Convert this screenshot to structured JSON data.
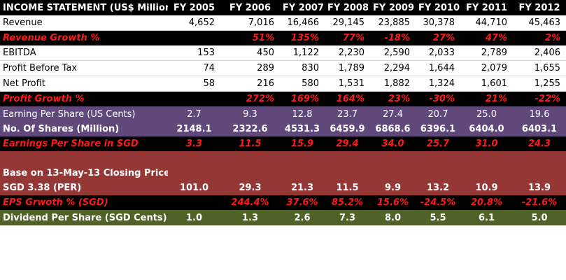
{
  "header": {
    "title": "INCOME STATEMENT (US$ Million)",
    "years": [
      "FY 2005",
      "FY 2006",
      "FY 2007",
      "FY 2008",
      "FY 2009",
      "FY 2010",
      "FY 2011",
      "FY 2012"
    ]
  },
  "rows": {
    "revenue": {
      "label": "Revenue",
      "values": [
        "4,652",
        "7,016",
        "16,466",
        "29,145",
        "23,885",
        "30,378",
        "44,710",
        "45,463"
      ]
    },
    "revenue_growth": {
      "label": "Revenue Growth %",
      "values": [
        "",
        "51%",
        "135%",
        "77%",
        "-18%",
        "27%",
        "47%",
        "2%"
      ]
    },
    "ebitda": {
      "label": "EBITDA",
      "values": [
        "153",
        "450",
        "1,122",
        "2,230",
        "2,590",
        "2,033",
        "2,789",
        "2,406"
      ]
    },
    "profit_before_tax": {
      "label": "Profit Before Tax",
      "values": [
        "74",
        "289",
        "830",
        "1,789",
        "2,294",
        "1,644",
        "2,079",
        "1,655"
      ]
    },
    "net_profit": {
      "label": "Net Profit",
      "values": [
        "58",
        "216",
        "580",
        "1,531",
        "1,882",
        "1,324",
        "1,601",
        "1,255"
      ]
    },
    "profit_growth": {
      "label": "Profit Growth %",
      "values": [
        "",
        "272%",
        "169%",
        "164%",
        "23%",
        "-30%",
        "21%",
        "-22%"
      ]
    },
    "eps_us": {
      "label": "Earning Per Share (US Cents)",
      "values": [
        "2.7",
        "9.3",
        "12.8",
        "23.7",
        "27.4",
        "20.7",
        "25.0",
        "19.6"
      ]
    },
    "shares": {
      "label": "No. Of Shares (Million)",
      "values": [
        "2148.1",
        "2322.6",
        "4531.3",
        "6459.9",
        "6868.6",
        "6396.1",
        "6404.0",
        "6403.1"
      ]
    },
    "eps_sgd": {
      "label": "Earnings Per Share in SGD",
      "values": [
        "3.3",
        "11.5",
        "15.9",
        "29.4",
        "34.0",
        "25.7",
        "31.0",
        "24.3"
      ]
    },
    "per_note": {
      "label": "Base on 13-May-13 Closing Price"
    },
    "per": {
      "label": "SGD 3.38 (PER)",
      "values": [
        "101.0",
        "29.3",
        "21.3",
        "11.5",
        "9.9",
        "13.2",
        "10.9",
        "13.9"
      ]
    },
    "eps_growth_sgd": {
      "label": "EPS Grwoth % (SGD)",
      "values": [
        "",
        "244.4%",
        "37.6%",
        "85.2%",
        "15.6%",
        "-24.5%",
        "20.8%",
        "-21.6%"
      ]
    },
    "dividend": {
      "label": "Dividend Per Share (SGD Cents)",
      "values": [
        "1.0",
        "1.3",
        "2.6",
        "7.3",
        "8.0",
        "5.5",
        "6.1",
        "5.0"
      ]
    }
  }
}
